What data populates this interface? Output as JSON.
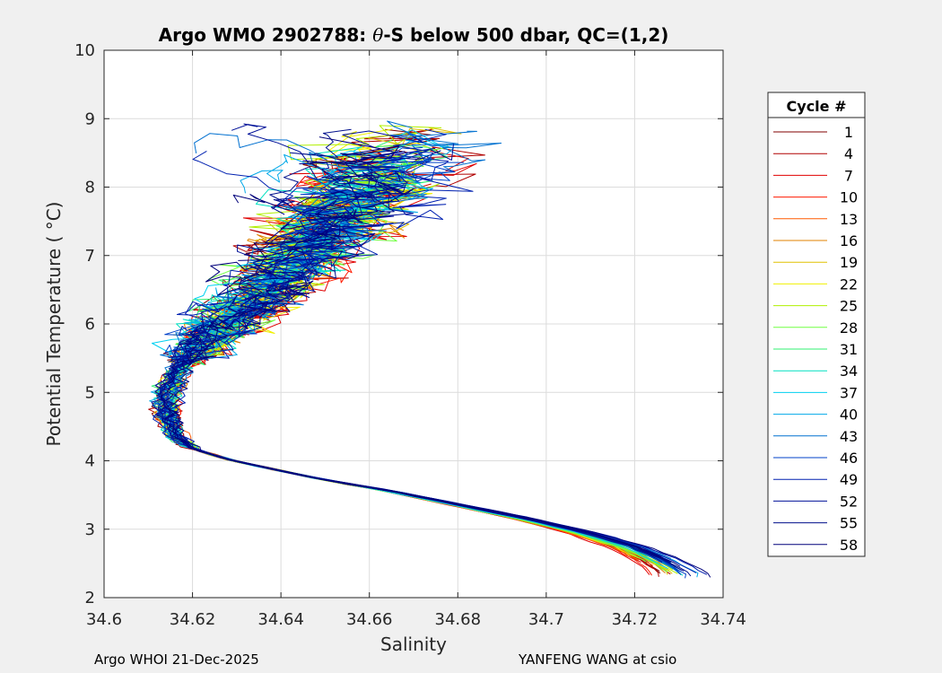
{
  "chart_data": {
    "type": "line",
    "title_prefix": "Argo WMO 2902788: ",
    "title_symbol": "θ",
    "title_suffix": "-S below 500 dbar,  QC=(1,2)",
    "xlabel": "Salinity",
    "ylabel": "Potential Temperature ( °C)",
    "xlim": [
      34.6,
      34.74
    ],
    "ylim": [
      2,
      10
    ],
    "xticks": [
      34.6,
      34.62,
      34.64,
      34.66,
      34.68,
      34.7,
      34.72,
      34.74
    ],
    "xtick_labels": [
      "34.6",
      "34.62",
      "34.64",
      "34.66",
      "34.68",
      "34.7",
      "34.72",
      "34.74"
    ],
    "yticks": [
      2,
      3,
      4,
      5,
      6,
      7,
      8,
      9,
      10
    ],
    "ytick_labels": [
      "2",
      "3",
      "4",
      "5",
      "6",
      "7",
      "8",
      "9",
      "10"
    ],
    "grid": true,
    "legend_title": "Cycle #",
    "legend_position": "outside-right",
    "series": [
      {
        "name": "1",
        "color": "#800000"
      },
      {
        "name": "4",
        "color": "#b00000"
      },
      {
        "name": "7",
        "color": "#e00000"
      },
      {
        "name": "10",
        "color": "#ff1a00"
      },
      {
        "name": "13",
        "color": "#ff5a00"
      },
      {
        "name": "16",
        "color": "#e08000"
      },
      {
        "name": "19",
        "color": "#e0c000"
      },
      {
        "name": "22",
        "color": "#f0f000"
      },
      {
        "name": "25",
        "color": "#b0f000"
      },
      {
        "name": "28",
        "color": "#70ff40"
      },
      {
        "name": "31",
        "color": "#30f070"
      },
      {
        "name": "34",
        "color": "#00e0c0"
      },
      {
        "name": "37",
        "color": "#00d0f0"
      },
      {
        "name": "40",
        "color": "#00a8e8"
      },
      {
        "name": "43",
        "color": "#0070d0"
      },
      {
        "name": "46",
        "color": "#0040c8"
      },
      {
        "name": "49",
        "color": "#0020b0"
      },
      {
        "name": "52",
        "color": "#001098"
      },
      {
        "name": "55",
        "color": "#000f8c"
      },
      {
        "name": "58",
        "color": "#00007a"
      }
    ],
    "mean_profile": [
      [
        34.73,
        2.35
      ],
      [
        34.725,
        2.55
      ],
      [
        34.718,
        2.75
      ],
      [
        34.708,
        2.95
      ],
      [
        34.695,
        3.15
      ],
      [
        34.68,
        3.35
      ],
      [
        34.665,
        3.55
      ],
      [
        34.65,
        3.72
      ],
      [
        34.638,
        3.88
      ],
      [
        34.628,
        4.02
      ],
      [
        34.62,
        4.18
      ],
      [
        34.616,
        4.35
      ],
      [
        34.6145,
        4.6
      ],
      [
        34.614,
        4.85
      ],
      [
        34.6145,
        5.05
      ],
      [
        34.6165,
        5.3
      ],
      [
        34.62,
        5.55
      ],
      [
        34.625,
        5.85
      ],
      [
        34.631,
        6.2
      ],
      [
        34.638,
        6.55
      ],
      [
        34.644,
        6.9
      ],
      [
        34.649,
        7.25
      ],
      [
        34.654,
        7.6
      ],
      [
        34.659,
        7.95
      ],
      [
        34.664,
        8.3
      ],
      [
        34.669,
        8.65
      ]
    ]
  },
  "footer": {
    "left": "Argo WHOI 21-Dec-2025",
    "right": "YANFENG WANG at csio"
  }
}
